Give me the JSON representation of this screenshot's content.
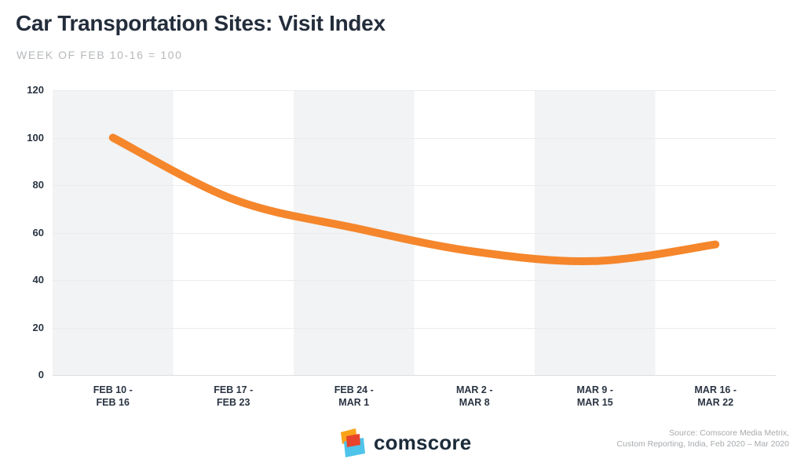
{
  "header": {
    "title": "Car Transportation Sites: Visit Index",
    "subtitle": "WEEK OF FEB 10-16 = 100"
  },
  "chart_data": {
    "type": "line",
    "title": "Car Transportation Sites: Visit Index",
    "subtitle_note": "WEEK OF FEB 10-16 = 100",
    "categories": [
      "FEB 10 - FEB 16",
      "FEB 17 - FEB 23",
      "FEB 24 - MAR 1",
      "MAR 2 - MAR 8",
      "MAR 9 - MAR 15",
      "MAR 16 - MAR 22"
    ],
    "category_lines": [
      [
        "FEB 10 -",
        "FEB 16"
      ],
      [
        "FEB 17 -",
        "FEB 23"
      ],
      [
        "FEB 24 -",
        "MAR 1"
      ],
      [
        "MAR 2 -",
        "MAR 8"
      ],
      [
        "MAR 9 -",
        "MAR 15"
      ],
      [
        "MAR 16 -",
        "MAR 22"
      ]
    ],
    "series": [
      {
        "name": "Visit Index",
        "values": [
          100,
          74,
          62,
          52,
          48,
          55
        ]
      }
    ],
    "xlabel": "",
    "ylabel": "",
    "ylim": [
      0,
      120
    ],
    "yticks": [
      0,
      20,
      40,
      60,
      80,
      100,
      120
    ],
    "grid": true,
    "legend": "none",
    "line_color": "#F5862B",
    "band_color": "#F2F3F4",
    "grid_color": "#EAEBEC",
    "baseline_color": "#DCDEDF"
  },
  "footer": {
    "logo_text": "comscore",
    "source_line1": "Source: Comscore Media Metrix,",
    "source_line2": "Custom Reporting, India, Feb 2020 – Mar 2020",
    "logo_colors": {
      "orange": "#F9A21A",
      "red": "#E8432D",
      "blue": "#4FC4EA",
      "text": "#1C2B3A"
    }
  }
}
